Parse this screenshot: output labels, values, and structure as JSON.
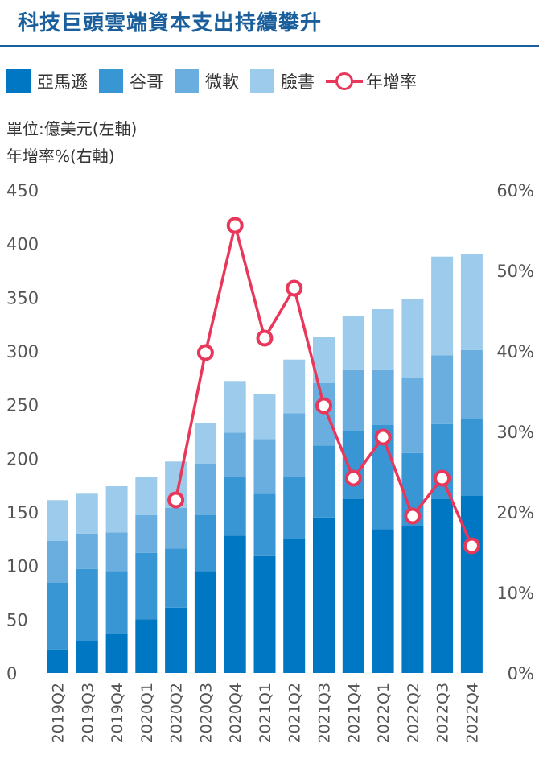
{
  "header": {
    "title": "科技巨頭雲端資本支出持續攀升"
  },
  "units": {
    "left": "單位:億美元(左軸)",
    "right": "年增率%(右軸)"
  },
  "colors": {
    "amazon": "#0077c2",
    "google": "#3896d4",
    "microsoft": "#6aaedf",
    "meta": "#9ccbeb",
    "growth": "#e8375a"
  },
  "legend": [
    {
      "label": "亞馬遜",
      "color": "#0077c2",
      "kind": "bar"
    },
    {
      "label": "谷哥",
      "color": "#3896d4",
      "kind": "bar"
    },
    {
      "label": "微軟",
      "color": "#6aaedf",
      "kind": "bar"
    },
    {
      "label": "臉書",
      "color": "#9ccbeb",
      "kind": "bar"
    },
    {
      "label": "年增率",
      "color": "#e8375a",
      "kind": "line"
    }
  ],
  "chart_data": {
    "type": "bar",
    "stacked": true,
    "title": "科技巨頭雲端資本支出持續攀升",
    "categories": [
      "2019Q2",
      "2019Q3",
      "2019Q4",
      "2020Q1",
      "2020Q2",
      "2020Q3",
      "2020Q4",
      "2021Q1",
      "2021Q2",
      "2021Q3",
      "2021Q4",
      "2022Q1",
      "2022Q2",
      "2022Q3",
      "2022Q4"
    ],
    "series": [
      {
        "name": "亞馬遜",
        "axis": "left",
        "color": "#0077c2",
        "values": [
          22,
          30,
          36,
          50,
          61,
          95,
          128,
          109,
          125,
          145,
          162,
          134,
          137,
          162,
          165
        ]
      },
      {
        "name": "谷哥",
        "axis": "left",
        "color": "#3896d4",
        "values": [
          62,
          67,
          59,
          62,
          55,
          52,
          55,
          58,
          58,
          67,
          63,
          97,
          68,
          70,
          72
        ]
      },
      {
        "name": "微軟",
        "axis": "left",
        "color": "#6aaedf",
        "values": [
          39,
          33,
          36,
          35,
          38,
          48,
          41,
          51,
          59,
          58,
          58,
          52,
          70,
          64,
          64
        ]
      },
      {
        "name": "臉書",
        "axis": "left",
        "color": "#9ccbeb",
        "values": [
          38,
          37,
          43,
          36,
          43,
          38,
          48,
          42,
          50,
          43,
          50,
          56,
          73,
          92,
          89
        ]
      },
      {
        "name": "年增率",
        "type": "line",
        "axis": "right",
        "color": "#e8375a",
        "values": [
          null,
          null,
          null,
          null,
          21.5,
          39.8,
          55.6,
          41.6,
          47.8,
          33.2,
          24.2,
          29.3,
          19.5,
          24.2,
          15.8
        ]
      }
    ],
    "y_left": {
      "min": 0,
      "max": 450,
      "ticks": [
        "0",
        "50",
        "100",
        "150",
        "200",
        "250",
        "300",
        "350",
        "400",
        "450"
      ]
    },
    "y_right": {
      "min": 0,
      "max": 60,
      "ticks": [
        "0%",
        "10%",
        "20%",
        "30%",
        "40%",
        "50%",
        "60%"
      ]
    },
    "legend_position": "top",
    "grid": false
  }
}
